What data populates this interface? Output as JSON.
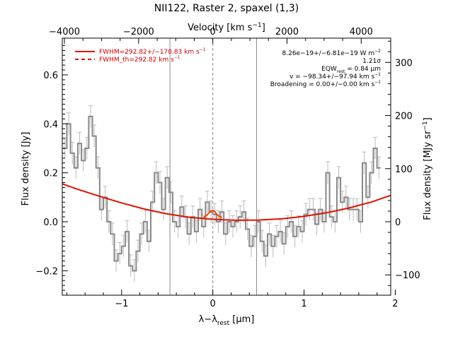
{
  "chart_data": {
    "type": "line",
    "title": "NII122, Raster 2, spaxel (1,3)",
    "xlabel": "λ−λ",
    "xlabel_sub": "rest",
    "xlabel_unit": " [μm]",
    "ylabel": "Flux density [Jy]",
    "top_label": "Velocity [km s",
    "top_label_sup": "−1",
    "top_label_end": "]",
    "right_label": "Flux density [MJy sr",
    "right_label_sup": "−1",
    "right_label_end": "]",
    "xlim": [
      -1.65,
      1.95
    ],
    "ylim": [
      -0.3,
      0.75
    ],
    "x_ticks": [
      -1,
      0,
      1,
      2
    ],
    "x_tick_labels": [
      "−1",
      "0",
      "1",
      "2"
    ],
    "y_ticks": [
      -0.2,
      0.0,
      0.2,
      0.4,
      0.6
    ],
    "y_tick_labels": [
      "−0.2",
      "0.0",
      "0.2",
      "0.4",
      "0.6"
    ],
    "top_ticks_kms": [
      -4000,
      -2000,
      0,
      2000,
      4000
    ],
    "top_tick_labels": [
      "−4000",
      "−2000",
      "0",
      "2000",
      "4000"
    ],
    "right_ticks_mjy": [
      -100,
      0,
      100,
      200,
      300
    ],
    "right_tick_labels": [
      "−100",
      "0",
      "100",
      "200",
      "300"
    ],
    "vertical_lines_um": [
      -0.47,
      0.0,
      0.48
    ],
    "legend": {
      "placement": "top-left",
      "entries": [
        {
          "label": "FWHM=292.82+/−170.83 km s",
          "sup": "−1",
          "style": "solid"
        },
        {
          "label": "FWHM_th=292.82 km s",
          "sup": "−1",
          "style": "dashed"
        }
      ]
    },
    "annotations": [
      {
        "text": "8.26e−19+/−6.81e−19 W m",
        "sup": "−2"
      },
      {
        "text": "1.21σ"
      },
      {
        "text": "EQW",
        "sub": "rest",
        "text2": " = 0.84 μm"
      },
      {
        "text": "v = −98.34+/−97.94 km s",
        "sup": "−1"
      },
      {
        "text": "Broadening = 0.00+/−0.00 km s",
        "sup": "−1"
      }
    ],
    "series": [
      {
        "kind": "spectrum",
        "color": "#888888",
        "x": [
          -1.62,
          -1.58,
          -1.54,
          -1.5,
          -1.46,
          -1.42,
          -1.38,
          -1.34,
          -1.3,
          -1.26,
          -1.22,
          -1.18,
          -1.14,
          -1.1,
          -1.06,
          -1.02,
          -0.98,
          -0.94,
          -0.9,
          -0.86,
          -0.82,
          -0.78,
          -0.74,
          -0.7,
          -0.66,
          -0.62,
          -0.58,
          -0.54,
          -0.5,
          -0.46,
          -0.42,
          -0.38,
          -0.34,
          -0.3,
          -0.26,
          -0.22,
          -0.18,
          -0.14,
          -0.1,
          -0.06,
          -0.02,
          0.02,
          0.06,
          0.1,
          0.14,
          0.18,
          0.22,
          0.26,
          0.3,
          0.34,
          0.38,
          0.42,
          0.46,
          0.5,
          0.54,
          0.58,
          0.62,
          0.66,
          0.7,
          0.74,
          0.78,
          0.82,
          0.86,
          0.9,
          0.94,
          0.98,
          1.02,
          1.06,
          1.1,
          1.14,
          1.18,
          1.22,
          1.26,
          1.3,
          1.34,
          1.38,
          1.42,
          1.46,
          1.5,
          1.54,
          1.58,
          1.62,
          1.66,
          1.7,
          1.74,
          1.78,
          1.82
        ],
        "y": [
          0.3,
          0.4,
          0.28,
          0.22,
          0.32,
          0.25,
          0.3,
          0.43,
          0.35,
          0.22,
          0.05,
          0.1,
          0.0,
          -0.05,
          -0.16,
          -0.13,
          -0.1,
          -0.04,
          -0.18,
          -0.2,
          -0.12,
          -0.05,
          0.0,
          -0.08,
          0.08,
          0.2,
          0.16,
          0.05,
          0.18,
          0.12,
          0.0,
          -0.02,
          0.06,
          0.02,
          -0.05,
          0.02,
          -0.04,
          0.05,
          -0.02,
          0.08,
          0.04,
          0.03,
          0.0,
          0.04,
          -0.05,
          0.0,
          -0.02,
          0.0,
          0.02,
          0.04,
          -0.03,
          -0.1,
          -0.06,
          0.0,
          -0.08,
          -0.14,
          -0.05,
          -0.1,
          -0.06,
          -0.04,
          -0.09,
          -0.02,
          0.0,
          -0.06,
          -0.02,
          -0.04,
          0.03,
          0.05,
          0.05,
          -0.01,
          0.05,
          0.0,
          0.2,
          0.02,
          0.0,
          0.18,
          0.08,
          0.1,
          0.05,
          0.05,
          0.05,
          0.0,
          0.24,
          0.1,
          0.2,
          0.3,
          0.22
        ],
        "err": 0.045
      },
      {
        "kind": "continuum fit",
        "color": "#dd1100",
        "x": [
          -1.65,
          -1.5,
          -1.25,
          -1.0,
          -0.75,
          -0.5,
          -0.25,
          0.0,
          0.25,
          0.5,
          0.75,
          1.0,
          1.25,
          1.5,
          1.75,
          1.95
        ],
        "y": [
          0.155,
          0.135,
          0.105,
          0.077,
          0.052,
          0.032,
          0.018,
          0.01,
          0.006,
          0.007,
          0.012,
          0.022,
          0.037,
          0.057,
          0.082,
          0.108
        ]
      },
      {
        "kind": "line fit",
        "color": "#ff4400",
        "x": [
          -0.1,
          -0.07,
          -0.04,
          -0.02,
          0.0,
          0.02,
          0.04,
          0.07,
          0.1
        ],
        "y": [
          0.018,
          0.025,
          0.037,
          0.044,
          0.046,
          0.042,
          0.032,
          0.022,
          0.018
        ]
      }
    ]
  }
}
